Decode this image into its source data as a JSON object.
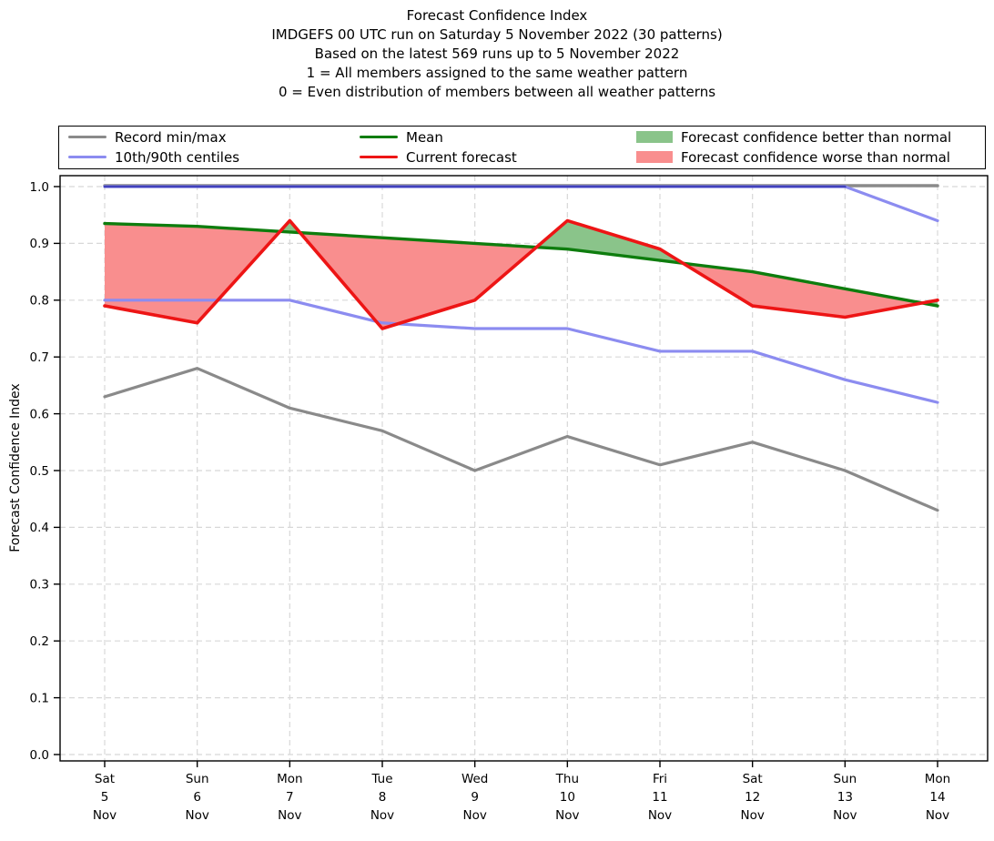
{
  "title": {
    "lines": [
      "Forecast Confidence Index",
      "IMDGEFS 00 UTC run on Saturday 5 November 2022 (30 patterns)",
      "Based on the latest 569 runs up to 5 November 2022",
      "1 = All members assigned to the same weather pattern",
      "0 = Even distribution of members between all weather patterns"
    ]
  },
  "legend": {
    "entries": [
      {
        "label": "Record min/max",
        "swatch": "line",
        "color": "#8a8a8a"
      },
      {
        "label": "10th/90th centiles",
        "swatch": "line",
        "color": "#8c8cf0"
      },
      {
        "label": "Mean",
        "swatch": "line",
        "color": "#0e7d0e"
      },
      {
        "label": "Current forecast",
        "swatch": "line",
        "color": "#ed1515"
      },
      {
        "label": "Forecast confidence better than normal",
        "swatch": "patch",
        "color": "#8ac48a"
      },
      {
        "label": "Forecast confidence worse than normal",
        "swatch": "patch",
        "color": "#f98e8e"
      }
    ]
  },
  "chart_data": {
    "type": "line",
    "title": "Forecast Confidence Index",
    "ylabel": "Forecast Confidence Index",
    "ylim": [
      0.0,
      1.0
    ],
    "ytick_step": 0.1,
    "grid": true,
    "legend_position": "top",
    "x_ticks": [
      {
        "day": "Sat",
        "date": "5",
        "month": "Nov"
      },
      {
        "day": "Sun",
        "date": "6",
        "month": "Nov"
      },
      {
        "day": "Mon",
        "date": "7",
        "month": "Nov"
      },
      {
        "day": "Tue",
        "date": "8",
        "month": "Nov"
      },
      {
        "day": "Wed",
        "date": "9",
        "month": "Nov"
      },
      {
        "day": "Thu",
        "date": "10",
        "month": "Nov"
      },
      {
        "day": "Fri",
        "date": "11",
        "month": "Nov"
      },
      {
        "day": "Sat",
        "date": "12",
        "month": "Nov"
      },
      {
        "day": "Sun",
        "date": "13",
        "month": "Nov"
      },
      {
        "day": "Mon",
        "date": "14",
        "month": "Nov"
      }
    ],
    "series": [
      {
        "name": "record-max",
        "label": "Record min/max",
        "color": "#8a8a8a",
        "width": 3.4,
        "values": [
          1.0,
          1.0,
          1.0,
          1.0,
          1.0,
          1.0,
          1.0,
          1.0,
          1.0,
          1.0
        ]
      },
      {
        "name": "record-min",
        "label": "Record min/max",
        "color": "#8a8a8a",
        "width": 3.2,
        "values": [
          0.63,
          0.68,
          0.61,
          0.57,
          0.5,
          0.56,
          0.51,
          0.55,
          0.5,
          0.43
        ]
      },
      {
        "name": "centile-90",
        "label": "10th/90th centiles",
        "color": "#8c8cf0",
        "width": 3.2,
        "values": [
          1.0,
          1.0,
          1.0,
          1.0,
          1.0,
          1.0,
          1.0,
          1.0,
          1.0,
          0.94
        ],
        "overlay": {
          "color": "#4141bc",
          "width": 2.6,
          "start_index": 0,
          "end_index": 8
        }
      },
      {
        "name": "centile-10",
        "label": "10th/90th centiles",
        "color": "#8c8cf0",
        "width": 3.2,
        "values": [
          0.8,
          0.8,
          0.8,
          0.76,
          0.75,
          0.75,
          0.71,
          0.71,
          0.66,
          0.62
        ]
      },
      {
        "name": "mean",
        "label": "Mean",
        "color": "#0e7d0e",
        "width": 3.4,
        "values": [
          0.935,
          0.93,
          0.92,
          0.91,
          0.9,
          0.89,
          0.87,
          0.85,
          0.82,
          0.79
        ]
      },
      {
        "name": "current-forecast",
        "label": "Current forecast",
        "color": "#ed1515",
        "width": 3.6,
        "values": [
          0.79,
          0.76,
          0.94,
          0.75,
          0.8,
          0.94,
          0.89,
          0.79,
          0.77,
          0.8
        ]
      }
    ],
    "fill_between": {
      "upper": "current-forecast",
      "lower": "mean",
      "above_color": "#8ac48a",
      "above_label": "Forecast confidence better than normal",
      "below_color": "#f98e8e",
      "below_label": "Forecast confidence worse than normal"
    }
  }
}
